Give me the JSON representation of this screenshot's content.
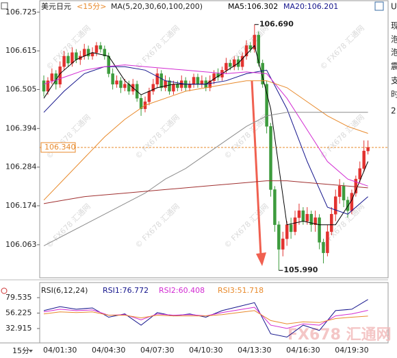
{
  "chart_data": [
    {
      "type": "candlestick",
      "title": "美元日元",
      "subtitle": "<15分>",
      "header": "MA(5,20,30,60,100,200)",
      "interval_label": "15分",
      "categories": [
        null,
        null,
        null,
        null,
        "04/01:30",
        null,
        null,
        null,
        null,
        null,
        null,
        null,
        null,
        null,
        null,
        null,
        "04/04:30",
        null,
        null,
        null,
        null,
        null,
        null,
        null,
        null,
        null,
        null,
        null,
        "04/07:30",
        null,
        null,
        null,
        null,
        null,
        null,
        null,
        null,
        null,
        null,
        null,
        "04/10:30",
        null,
        null,
        null,
        null,
        null,
        null,
        null,
        null,
        null,
        null,
        null,
        "04/13:30",
        null,
        null,
        null,
        null,
        null,
        null,
        null,
        null,
        null,
        null,
        null,
        "04/16:30",
        null,
        null,
        null,
        null,
        null,
        null,
        null,
        null,
        null,
        null,
        null,
        "04/19:30",
        null,
        null,
        null,
        null
      ],
      "open": [
        106.53,
        106.5,
        106.53,
        106.55,
        106.52,
        106.57,
        106.6,
        106.58,
        106.61,
        106.59,
        106.6,
        106.62,
        106.6,
        106.61,
        106.63,
        106.62,
        106.6,
        106.55,
        106.52,
        106.53,
        106.51,
        106.52,
        106.5,
        106.52,
        106.48,
        106.45,
        106.47,
        106.5,
        106.52,
        106.55,
        106.51,
        106.53,
        106.5,
        106.52,
        106.51,
        106.53,
        106.51,
        106.52,
        106.54,
        106.52,
        106.53,
        106.51,
        106.53,
        106.55,
        106.54,
        106.56,
        106.58,
        106.57,
        106.59,
        106.57,
        106.6,
        106.63,
        106.62,
        106.66,
        106.58,
        106.52,
        106.4,
        106.22,
        106.12,
        106.05,
        106.08,
        106.12,
        106.1,
        106.14,
        106.16,
        106.13,
        106.15,
        106.12,
        106.14,
        106.07,
        106.04,
        106.1,
        106.15,
        106.2,
        106.23,
        106.19,
        106.16,
        106.21,
        106.25,
        106.28,
        106.33
      ],
      "high": [
        106.545,
        106.54,
        106.565,
        106.56,
        106.585,
        106.615,
        106.61,
        106.625,
        106.62,
        106.615,
        106.635,
        106.63,
        106.625,
        106.64,
        106.64,
        106.63,
        106.61,
        106.565,
        106.545,
        106.54,
        106.535,
        106.53,
        106.535,
        106.53,
        106.49,
        106.485,
        106.51,
        106.535,
        106.565,
        106.56,
        106.545,
        106.54,
        106.53,
        106.53,
        106.545,
        106.54,
        106.53,
        106.55,
        106.55,
        106.545,
        106.54,
        106.545,
        106.56,
        106.565,
        106.57,
        106.595,
        106.59,
        106.6,
        106.6,
        106.61,
        106.645,
        106.64,
        106.69,
        106.67,
        106.59,
        106.53,
        106.41,
        106.23,
        106.13,
        106.1,
        106.13,
        106.14,
        106.16,
        106.18,
        106.17,
        106.17,
        106.16,
        106.16,
        106.15,
        106.08,
        106.12,
        106.17,
        106.22,
        106.25,
        106.24,
        106.2,
        106.22,
        106.26,
        106.3,
        106.36,
        106.36
      ],
      "low": [
        106.485,
        106.49,
        106.52,
        106.505,
        106.51,
        106.56,
        106.57,
        106.57,
        106.58,
        106.575,
        106.59,
        106.59,
        106.59,
        106.6,
        106.61,
        106.59,
        106.54,
        106.505,
        106.51,
        106.495,
        106.5,
        106.49,
        106.49,
        106.47,
        106.43,
        106.44,
        106.46,
        106.49,
        106.51,
        106.5,
        106.5,
        106.49,
        106.49,
        106.5,
        106.5,
        106.5,
        106.5,
        106.51,
        106.51,
        106.51,
        106.5,
        106.5,
        106.52,
        106.53,
        106.53,
        106.55,
        106.56,
        106.56,
        106.56,
        106.56,
        106.59,
        106.61,
        106.61,
        106.57,
        106.51,
        106.38,
        106.2,
        106.1,
        105.99,
        106.03,
        106.06,
        106.08,
        106.09,
        106.12,
        106.12,
        106.12,
        106.1,
        106.1,
        106.05,
        106.01,
        106.03,
        106.09,
        106.13,
        106.18,
        106.17,
        106.14,
        106.15,
        106.2,
        106.24,
        106.27,
        106.32
      ],
      "close": [
        106.5,
        106.53,
        106.55,
        106.52,
        106.57,
        106.6,
        106.58,
        106.61,
        106.59,
        106.6,
        106.62,
        106.6,
        106.61,
        106.63,
        106.62,
        106.6,
        106.55,
        106.52,
        106.53,
        106.51,
        106.52,
        106.5,
        106.52,
        106.48,
        106.45,
        106.47,
        106.5,
        106.52,
        106.55,
        106.51,
        106.53,
        106.5,
        106.52,
        106.51,
        106.53,
        106.51,
        106.52,
        106.54,
        106.52,
        106.53,
        106.51,
        106.53,
        106.55,
        106.54,
        106.56,
        106.58,
        106.57,
        106.59,
        106.57,
        106.6,
        106.63,
        106.62,
        106.66,
        106.58,
        106.52,
        106.4,
        106.22,
        106.12,
        106.05,
        106.08,
        106.12,
        106.1,
        106.14,
        106.16,
        106.13,
        106.15,
        106.12,
        106.14,
        106.07,
        106.04,
        106.1,
        106.15,
        106.2,
        106.23,
        106.19,
        106.16,
        106.21,
        106.25,
        106.28,
        106.33,
        106.34
      ],
      "up_color": "#e2322f",
      "down_color": "#3d9b3d",
      "ylim": [
        105.969,
        106.75
      ],
      "yticks": [
        106.725,
        106.615,
        106.505,
        106.394,
        106.284,
        106.174,
        106.063
      ],
      "grid": false,
      "last_price": {
        "value": 106.34,
        "label": "106.340"
      },
      "last_price_color": "#e8892a",
      "annotations": [
        {
          "value": 106.69,
          "label": "106.690"
        },
        {
          "value": 105.99,
          "label": "105.990"
        }
      ],
      "lines": [
        {
          "name": "MA5:106.302",
          "color": "#000000",
          "x": [
            0,
            4,
            8,
            12,
            16,
            20,
            24,
            28,
            32,
            36,
            40,
            44,
            48,
            52,
            56,
            60,
            64,
            68,
            72,
            76,
            80
          ],
          "values": [
            106.48,
            106.55,
            106.59,
            106.61,
            106.6,
            106.53,
            106.49,
            106.51,
            106.52,
            106.52,
            106.52,
            106.55,
            106.58,
            106.63,
            106.45,
            106.12,
            106.13,
            106.12,
            106.12,
            106.19,
            106.3
          ]
        },
        {
          "name": "MA20:106.201",
          "color": "#14148c",
          "x": [
            0,
            5,
            10,
            15,
            20,
            25,
            30,
            35,
            40,
            45,
            50,
            55,
            60,
            65,
            70,
            75,
            80
          ],
          "values": [
            106.44,
            106.5,
            106.55,
            106.57,
            106.57,
            106.56,
            106.53,
            106.52,
            106.52,
            106.53,
            106.55,
            106.56,
            106.45,
            106.3,
            106.17,
            106.15,
            106.2
          ]
        },
        {
          "color": "#d22ad2",
          "x": [
            0,
            5,
            10,
            15,
            20,
            25,
            30,
            35,
            40,
            45,
            50,
            55,
            60,
            65,
            70,
            75,
            80
          ],
          "values": [
            106.52,
            106.54,
            106.56,
            106.57,
            106.575,
            106.57,
            106.565,
            106.56,
            106.555,
            106.55,
            106.555,
            106.55,
            106.48,
            106.39,
            106.3,
            106.25,
            106.23
          ]
        },
        {
          "color": "#e8892a",
          "x": [
            0,
            5,
            10,
            15,
            20,
            25,
            30,
            35,
            40,
            45,
            50,
            55,
            60,
            65,
            70,
            75,
            80
          ],
          "values": [
            106.19,
            106.25,
            106.31,
            106.37,
            106.42,
            106.46,
            106.48,
            106.5,
            106.51,
            106.52,
            106.53,
            106.53,
            106.51,
            106.47,
            106.43,
            106.4,
            106.38
          ]
        },
        {
          "color": "#8c8c8c",
          "x": [
            0,
            5,
            10,
            15,
            20,
            25,
            30,
            35,
            40,
            45,
            50,
            55,
            60,
            65,
            70,
            75,
            80
          ],
          "values": [
            106.06,
            106.09,
            106.12,
            106.15,
            106.18,
            106.21,
            106.25,
            106.28,
            106.32,
            106.36,
            106.4,
            106.43,
            106.44,
            106.44,
            106.44,
            106.44,
            106.44
          ]
        },
        {
          "color": "#a03030",
          "x": [
            0,
            5,
            10,
            15,
            20,
            25,
            30,
            35,
            40,
            45,
            50,
            55,
            60,
            65,
            70,
            75,
            80
          ],
          "values": [
            106.18,
            106.19,
            106.2,
            106.205,
            106.21,
            106.215,
            106.22,
            106.225,
            106.23,
            106.235,
            106.24,
            106.245,
            106.245,
            106.24,
            106.235,
            106.23,
            106.225
          ]
        }
      ]
    },
    {
      "type": "line",
      "title": "RSI(6,12,24)",
      "ylim": [
        11.2,
        96.1
      ],
      "yticks": [
        79.535,
        56.225,
        32.915
      ],
      "series": [
        {
          "name": "RSI1:76.772",
          "color": "#14148c",
          "x": [
            0,
            4,
            8,
            12,
            16,
            20,
            24,
            28,
            32,
            36,
            40,
            44,
            48,
            52,
            56,
            60,
            64,
            68,
            72,
            76,
            80
          ],
          "values": [
            60,
            66,
            62,
            64,
            50,
            55,
            38,
            57,
            52,
            55,
            50,
            60,
            66,
            72,
            25,
            20,
            38,
            30,
            60,
            62,
            76.772
          ]
        },
        {
          "name": "RSI2:60.408",
          "color": "#d22ad2",
          "x": [
            0,
            4,
            8,
            12,
            16,
            20,
            24,
            28,
            32,
            36,
            40,
            44,
            48,
            52,
            56,
            60,
            64,
            68,
            72,
            76,
            80
          ],
          "values": [
            58,
            62,
            60,
            61,
            53,
            54,
            46,
            55,
            53,
            54,
            52,
            57,
            61,
            65,
            38,
            33,
            40,
            38,
            52,
            55,
            60.408
          ]
        },
        {
          "name": "RSI3:51.718",
          "color": "#e8892a",
          "x": [
            0,
            4,
            8,
            12,
            16,
            20,
            24,
            28,
            32,
            36,
            40,
            44,
            48,
            52,
            56,
            60,
            64,
            68,
            72,
            76,
            80
          ],
          "values": [
            55,
            58,
            57,
            58,
            53,
            53,
            49,
            53,
            52,
            52,
            52,
            54,
            57,
            60,
            45,
            40,
            43,
            42,
            48,
            50,
            51.718
          ]
        }
      ]
    }
  ],
  "watermark": "© FX678 汇通网",
  "logo": "FX678 汇通网",
  "sidebar": [
    "U",
    "现",
    "泡",
    "泡",
    "震",
    "支",
    "时",
    "2"
  ]
}
